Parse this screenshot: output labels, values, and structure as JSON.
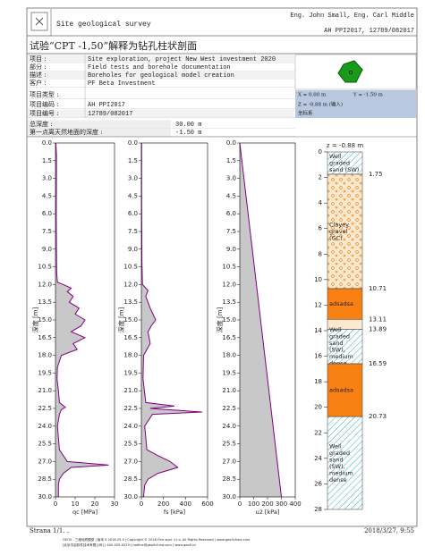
{
  "header": {
    "title": "Site geological survey",
    "authors": "Eng. John Small, Eng. Carl Middle",
    "project_code": "AH PPI2017, 12789/082017"
  },
  "page_title": "试验“CPT -1,50”解释为钻孔柱状剖面",
  "info": {
    "rows": [
      {
        "label": "项目 :",
        "value": "Site exploration, project New West investment 2020"
      },
      {
        "label": "部分 :",
        "value": "Field tests and borehole documentation"
      },
      {
        "label": "描述 :",
        "value": "Boreholes for geological model creation"
      },
      {
        "label": "客户 :",
        "value": "PF Beta Investment"
      },
      {
        "label": "项目类型 :"
      },
      {
        "label": "项目编码 :",
        "value": "AH PPI2017"
      },
      {
        "label": "项目编号 :",
        "value": "12789/082017"
      }
    ],
    "coords": [
      "X = 0.00 m",
      "Y = -1.50 m",
      "Z = -0.88 m (输入)",
      "坐标系"
    ],
    "depth_rows": [
      {
        "label": "总深度 :",
        "value": "30.00 m"
      },
      {
        "label": "第一点离天然地面的深度 :",
        "value": "-1.50 m"
      }
    ]
  },
  "depth_axis": {
    "label": "深度 [m]",
    "ylim": [
      0,
      30
    ],
    "yticks": [
      {
        "value": 0,
        "label": "0.0"
      },
      {
        "value": 1.5,
        "label": "1.5"
      },
      {
        "value": 3,
        "label": "3.0"
      },
      {
        "value": 4.5,
        "label": "4.5"
      },
      {
        "value": 6,
        "label": "6.0"
      },
      {
        "value": 7.5,
        "label": "7.5"
      },
      {
        "value": 9,
        "label": "9.0"
      },
      {
        "value": 10.5,
        "label": "10.5"
      },
      {
        "value": 12,
        "label": "12.0"
      },
      {
        "value": 13.5,
        "label": "13.5"
      },
      {
        "value": 15,
        "label": "15.0"
      },
      {
        "value": 16.5,
        "label": "16.5"
      },
      {
        "value": 18,
        "label": "18.0"
      },
      {
        "value": 19.5,
        "label": "19.5"
      },
      {
        "value": 21,
        "label": "21.0"
      },
      {
        "value": 22.5,
        "label": "22.5"
      },
      {
        "value": 24,
        "label": "24.0"
      },
      {
        "value": 25.5,
        "label": "25.5"
      },
      {
        "value": 27,
        "label": "27.0"
      },
      {
        "value": 28.5,
        "label": "28.5"
      },
      {
        "value": 30,
        "label": "30.0"
      }
    ]
  },
  "chart_data": [
    {
      "type": "area",
      "x_label": "qc [MPa]",
      "xlim": [
        0,
        30
      ],
      "xticks": [
        0,
        10,
        20,
        30
      ],
      "color": "#800080",
      "fill": "#c8c8c8",
      "depth": [
        0,
        1,
        3,
        6,
        9,
        11,
        11.8,
        12,
        12.3,
        12.6,
        13,
        13.5,
        14,
        14.5,
        15,
        15.5,
        16,
        16.5,
        17,
        17.5,
        18,
        19,
        20,
        21,
        22,
        22.4,
        22.6,
        23,
        24,
        25,
        26,
        26.5,
        27,
        27.3,
        27.5,
        28,
        28.5,
        29,
        30
      ],
      "values": [
        0.2,
        0.5,
        0.5,
        0.4,
        0.5,
        0.6,
        1,
        4,
        8,
        6,
        9,
        7,
        12,
        10,
        15,
        13,
        8,
        15,
        9,
        11,
        3,
        1,
        0.8,
        1.5,
        2,
        5,
        3,
        2,
        1,
        1.5,
        2,
        4,
        6,
        27,
        8,
        4,
        2,
        1.5,
        1.5
      ]
    },
    {
      "type": "area",
      "x_label": "fs [kPa]",
      "xlim": [
        0,
        600
      ],
      "xticks": [
        0,
        200,
        400,
        600
      ],
      "color": "#800080",
      "fill": "#c8c8c8",
      "depth": [
        0,
        5,
        10,
        12,
        12.5,
        13,
        14,
        15,
        15.5,
        16,
        17,
        18,
        20,
        22,
        22.3,
        22.5,
        22.8,
        23,
        24,
        25,
        26,
        26.5,
        27,
        27.5,
        28,
        28.5,
        29,
        30
      ],
      "values": [
        2,
        2,
        5,
        10,
        60,
        40,
        80,
        130,
        90,
        60,
        80,
        20,
        15,
        40,
        300,
        80,
        550,
        100,
        30,
        40,
        50,
        150,
        260,
        330,
        150,
        60,
        30,
        20
      ]
    },
    {
      "type": "area",
      "x_label": "u2 [kPa]",
      "xlim": [
        0,
        400
      ],
      "xticks": [
        0,
        100,
        200,
        300,
        400
      ],
      "color": "#800080",
      "fill": "#c8c8c8",
      "depth": [
        0,
        30
      ],
      "values": [
        0,
        300
      ]
    }
  ],
  "borehole": {
    "z_label": "z = -0.88 m",
    "ylim": [
      0,
      28
    ],
    "yticks": [
      0,
      2,
      4,
      6,
      8,
      10,
      12,
      14,
      16,
      18,
      20,
      22,
      24,
      26,
      28
    ],
    "layers": [
      {
        "name": "Well graded sand (SW)",
        "bottom": 1.75,
        "pattern": "hatch"
      },
      {
        "name": "Clayey gravel (GC)",
        "bottom": 10.71,
        "pattern": "gravel"
      },
      {
        "name": "adsadsa",
        "bottom": 13.11,
        "pattern": "solid"
      },
      {
        "bottom": 13.89,
        "pattern": "light"
      },
      {
        "name": "Well graded sand (SW), medium dense",
        "bottom": 16.59,
        "pattern": "hatch"
      },
      {
        "name": "adsadsa",
        "bottom": 20.73,
        "pattern": "solid"
      },
      {
        "name": "Well graded sand (SW), medium dense",
        "pattern": "hatch"
      }
    ]
  },
  "footer": {
    "page": "Strana 1/1. .",
    "date": "2018/3/27,  9:55",
    "credits": [
      "GEO5 - 三维地质模型 | 版本 5.2018.25.0 | Copyright © 2018 Fine spol. s r.o. All Rights Reserved | www.geo5china.com",
      "[北京中岩软件技术有限公司] | 400-029-0229 | hotline@geo5china.com | www.geo5.cn"
    ]
  }
}
